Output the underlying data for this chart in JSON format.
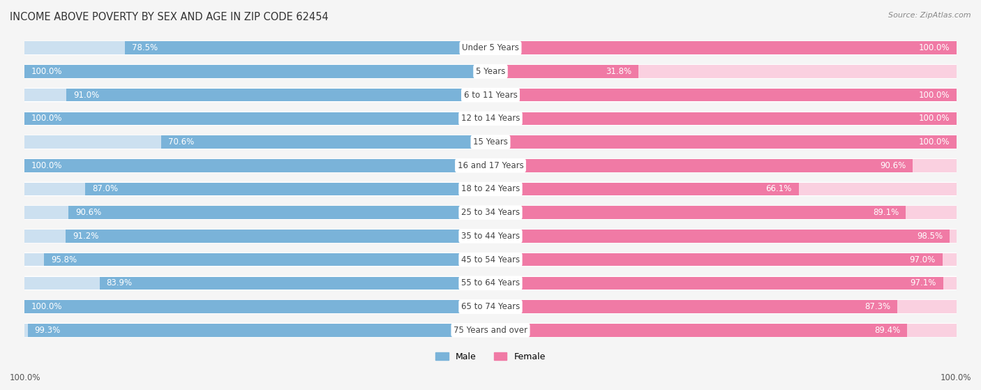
{
  "title": "INCOME ABOVE POVERTY BY SEX AND AGE IN ZIP CODE 62454",
  "source": "Source: ZipAtlas.com",
  "categories": [
    "Under 5 Years",
    "5 Years",
    "6 to 11 Years",
    "12 to 14 Years",
    "15 Years",
    "16 and 17 Years",
    "18 to 24 Years",
    "25 to 34 Years",
    "35 to 44 Years",
    "45 to 54 Years",
    "55 to 64 Years",
    "65 to 74 Years",
    "75 Years and over"
  ],
  "male_values": [
    78.5,
    100.0,
    91.0,
    100.0,
    70.6,
    100.0,
    87.0,
    90.6,
    91.2,
    95.8,
    83.9,
    100.0,
    99.3
  ],
  "female_values": [
    100.0,
    31.8,
    100.0,
    100.0,
    100.0,
    90.6,
    66.1,
    89.1,
    98.5,
    97.0,
    97.1,
    87.3,
    89.4
  ],
  "male_color": "#7ab3d9",
  "female_color": "#f07aa5",
  "male_bg_color": "#cce0f0",
  "female_bg_color": "#fad0e0",
  "male_label": "Male",
  "female_label": "Female",
  "bottom_male_label": "100.0%",
  "bottom_female_label": "100.0%",
  "background_color": "#f5f5f5",
  "row_bg_color": "#ffffff",
  "title_fontsize": 10.5,
  "source_fontsize": 8,
  "label_fontsize": 8.5,
  "cat_fontsize": 8.5
}
